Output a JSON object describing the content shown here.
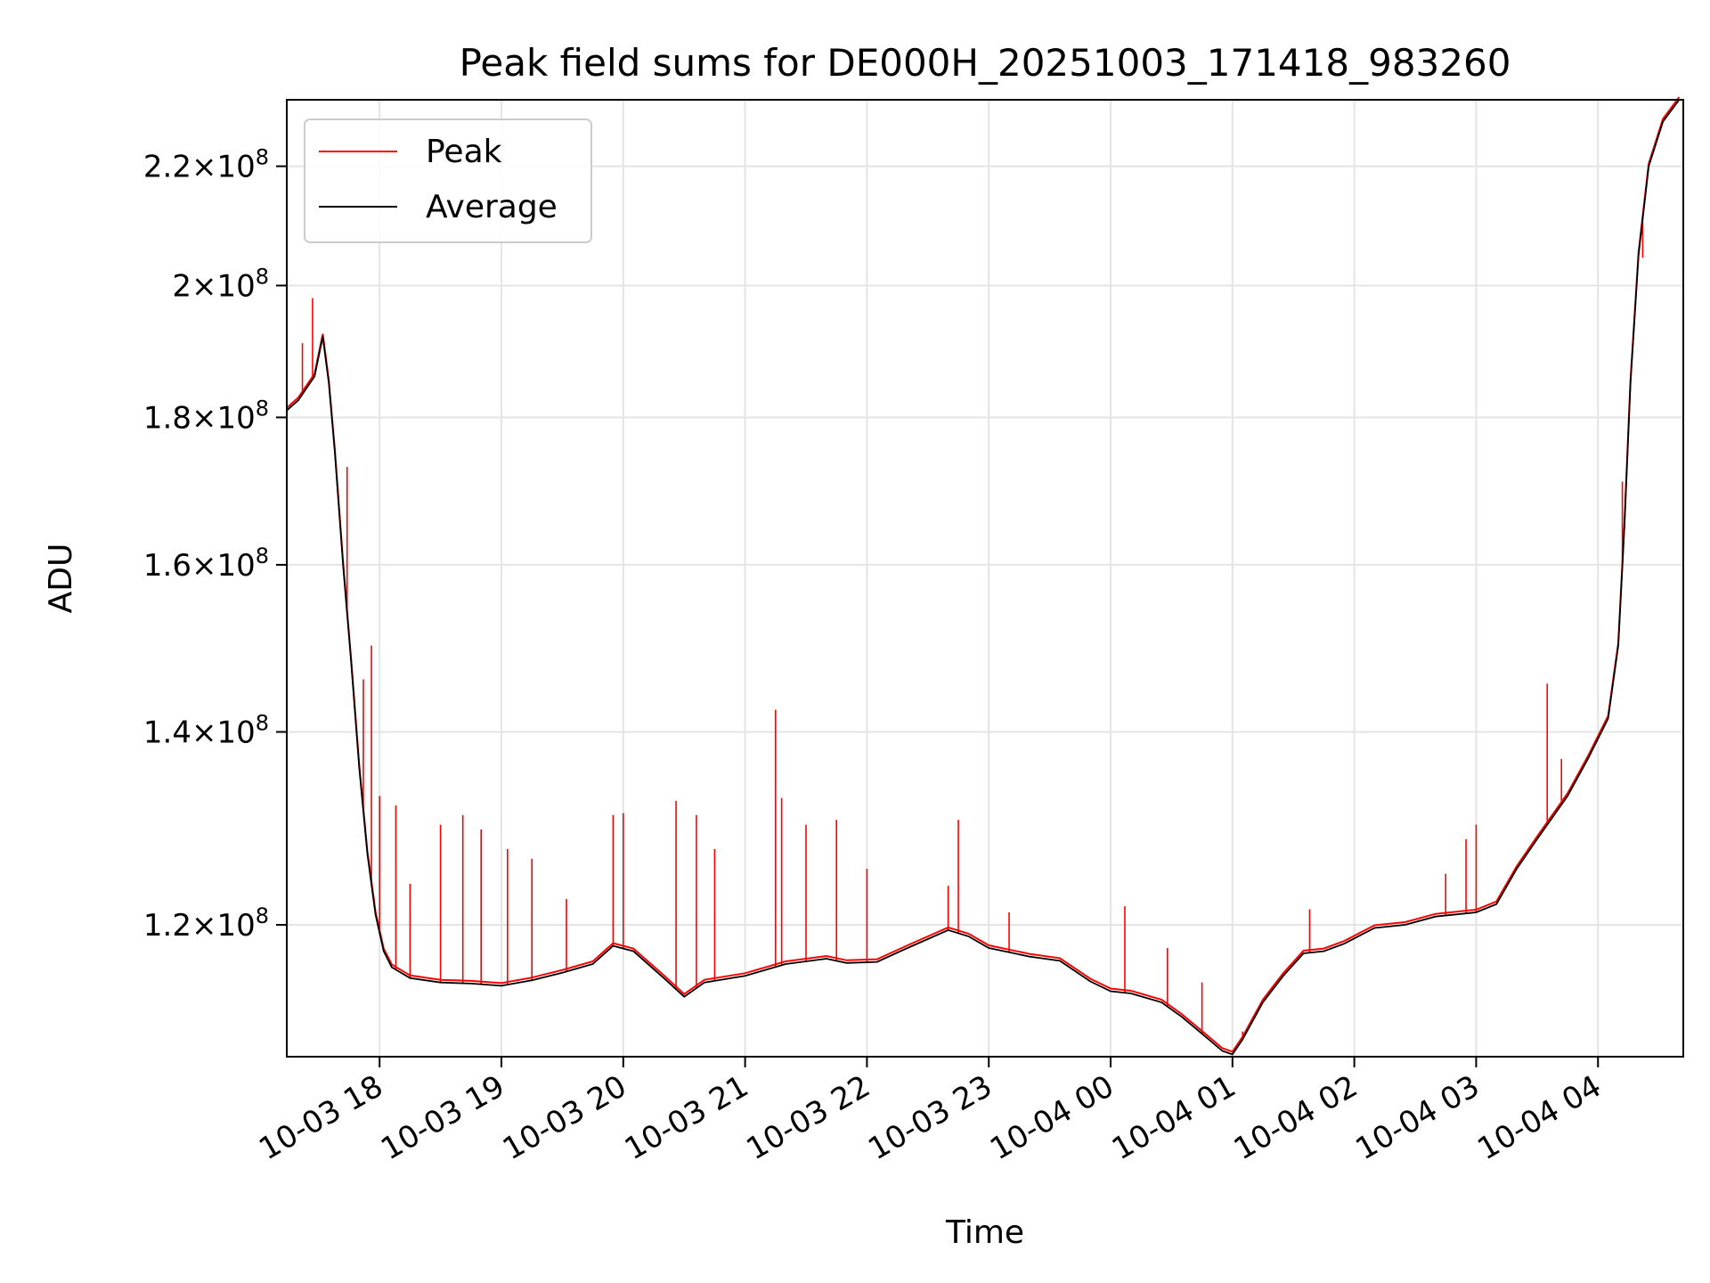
{
  "chart_data": {
    "type": "line",
    "title": "Peak field sums for DE000H_20251003_171418_983260",
    "xlabel": "Time",
    "ylabel": "ADU",
    "y_scale": "log",
    "ylim": [
      108000000,
      232000000
    ],
    "xlim": [
      "2025-10-03T17:14:18",
      "2025-10-04T04:42:00"
    ],
    "grid": true,
    "legend_position": "upper-left",
    "x_ticks": [
      {
        "time": "2025-10-03T18:00",
        "label": "10-03 18"
      },
      {
        "time": "2025-10-03T19:00",
        "label": "10-03 19"
      },
      {
        "time": "2025-10-03T20:00",
        "label": "10-03 20"
      },
      {
        "time": "2025-10-03T21:00",
        "label": "10-03 21"
      },
      {
        "time": "2025-10-03T22:00",
        "label": "10-03 22"
      },
      {
        "time": "2025-10-03T23:00",
        "label": "10-03 23"
      },
      {
        "time": "2025-10-04T00:00",
        "label": "10-04 00"
      },
      {
        "time": "2025-10-04T01:00",
        "label": "10-04 01"
      },
      {
        "time": "2025-10-04T02:00",
        "label": "10-04 02"
      },
      {
        "time": "2025-10-04T03:00",
        "label": "10-04 03"
      },
      {
        "time": "2025-10-04T04:00",
        "label": "10-04 04"
      }
    ],
    "y_ticks": [
      {
        "value": 120000000,
        "mantissa": "1.2",
        "base": "10",
        "exponent": "8"
      },
      {
        "value": 140000000,
        "mantissa": "1.4",
        "base": "10",
        "exponent": "8"
      },
      {
        "value": 160000000,
        "mantissa": "1.6",
        "base": "10",
        "exponent": "8"
      },
      {
        "value": 180000000,
        "mantissa": "1.8",
        "base": "10",
        "exponent": "8"
      },
      {
        "value": 200000000,
        "mantissa": "2",
        "base": "10",
        "exponent": "8"
      },
      {
        "value": 220000000,
        "mantissa": "2.2",
        "base": "10",
        "exponent": "8"
      }
    ],
    "series": [
      {
        "name": "Average",
        "color": "#000000",
        "points": [
          [
            "2025-10-03T17:14:18",
            181000000
          ],
          [
            "2025-10-03T17:20",
            182500000
          ],
          [
            "2025-10-03T17:28",
            186000000
          ],
          [
            "2025-10-03T17:32",
            192000000
          ],
          [
            "2025-10-03T17:35",
            185000000
          ],
          [
            "2025-10-03T17:38",
            175000000
          ],
          [
            "2025-10-03T17:42",
            160000000
          ],
          [
            "2025-10-03T17:46",
            148000000
          ],
          [
            "2025-10-03T17:50",
            136000000
          ],
          [
            "2025-10-03T17:54",
            127000000
          ],
          [
            "2025-10-03T17:58",
            121000000
          ],
          [
            "2025-10-03T18:02",
            117500000
          ],
          [
            "2025-10-03T18:06",
            116000000
          ],
          [
            "2025-10-03T18:15",
            115000000
          ],
          [
            "2025-10-03T18:30",
            114600000
          ],
          [
            "2025-10-03T18:45",
            114500000
          ],
          [
            "2025-10-03T19:00",
            114300000
          ],
          [
            "2025-10-03T19:15",
            114800000
          ],
          [
            "2025-10-03T19:30",
            115500000
          ],
          [
            "2025-10-03T19:45",
            116300000
          ],
          [
            "2025-10-03T19:55",
            118000000
          ],
          [
            "2025-10-03T20:05",
            117500000
          ],
          [
            "2025-10-03T20:20",
            115000000
          ],
          [
            "2025-10-03T20:30",
            113300000
          ],
          [
            "2025-10-03T20:40",
            114600000
          ],
          [
            "2025-10-03T21:00",
            115200000
          ],
          [
            "2025-10-03T21:20",
            116300000
          ],
          [
            "2025-10-03T21:40",
            116800000
          ],
          [
            "2025-10-03T21:50",
            116400000
          ],
          [
            "2025-10-03T22:05",
            116500000
          ],
          [
            "2025-10-03T22:20",
            117800000
          ],
          [
            "2025-10-03T22:40",
            119500000
          ],
          [
            "2025-10-03T22:50",
            118900000
          ],
          [
            "2025-10-03T23:00",
            117800000
          ],
          [
            "2025-10-03T23:10",
            117400000
          ],
          [
            "2025-10-03T23:20",
            117000000
          ],
          [
            "2025-10-03T23:35",
            116600000
          ],
          [
            "2025-10-03T23:50",
            114700000
          ],
          [
            "2025-10-04T00:00",
            113800000
          ],
          [
            "2025-10-04T00:10",
            113600000
          ],
          [
            "2025-10-04T00:25",
            112800000
          ],
          [
            "2025-10-04T00:35",
            111500000
          ],
          [
            "2025-10-04T00:45",
            110000000
          ],
          [
            "2025-10-04T00:55",
            108500000
          ],
          [
            "2025-10-04T01:00",
            108200000
          ],
          [
            "2025-10-04T01:05",
            109500000
          ],
          [
            "2025-10-04T01:15",
            112800000
          ],
          [
            "2025-10-04T01:25",
            115200000
          ],
          [
            "2025-10-04T01:35",
            117300000
          ],
          [
            "2025-10-04T01:45",
            117500000
          ],
          [
            "2025-10-04T01:55",
            118200000
          ],
          [
            "2025-10-04T02:10",
            119700000
          ],
          [
            "2025-10-04T02:25",
            120000000
          ],
          [
            "2025-10-04T02:40",
            120800000
          ],
          [
            "2025-10-04T03:00",
            121200000
          ],
          [
            "2025-10-04T03:10",
            122000000
          ],
          [
            "2025-10-04T03:20",
            125500000
          ],
          [
            "2025-10-04T03:30",
            128500000
          ],
          [
            "2025-10-04T03:45",
            133000000
          ],
          [
            "2025-10-04T03:55",
            137000000
          ],
          [
            "2025-10-04T04:05",
            141500000
          ],
          [
            "2025-10-04T04:10",
            150000000
          ],
          [
            "2025-10-04T04:13",
            165000000
          ],
          [
            "2025-10-04T04:16",
            185000000
          ],
          [
            "2025-10-04T04:20",
            205000000
          ],
          [
            "2025-10-04T04:25",
            220000000
          ],
          [
            "2025-10-04T04:32",
            228000000
          ],
          [
            "2025-10-04T04:40",
            232000000
          ]
        ]
      },
      {
        "name": "Peak",
        "color": "#ff0000",
        "spikes": [
          [
            "2025-10-03T17:22",
            191000000
          ],
          [
            "2025-10-03T17:27",
            198000000
          ],
          [
            "2025-10-03T17:44",
            173000000
          ],
          [
            "2025-10-03T17:52",
            146000000
          ],
          [
            "2025-10-03T17:56",
            150000000
          ],
          [
            "2025-10-03T18:00",
            133000000
          ],
          [
            "2025-10-03T18:08",
            132000000
          ],
          [
            "2025-10-03T18:15",
            124000000
          ],
          [
            "2025-10-03T18:30",
            130000000
          ],
          [
            "2025-10-03T18:41",
            131000000
          ],
          [
            "2025-10-03T18:50",
            129500000
          ],
          [
            "2025-10-03T19:03",
            127500000
          ],
          [
            "2025-10-03T19:15",
            126500000
          ],
          [
            "2025-10-03T19:32",
            122500000
          ],
          [
            "2025-10-03T19:55",
            131000000
          ],
          [
            "2025-10-03T20:00",
            131200000
          ],
          [
            "2025-10-03T20:26",
            132500000
          ],
          [
            "2025-10-03T20:36",
            131000000
          ],
          [
            "2025-10-03T20:45",
            127500000
          ],
          [
            "2025-10-03T21:15",
            142500000
          ],
          [
            "2025-10-03T21:18",
            132800000
          ],
          [
            "2025-10-03T21:30",
            130000000
          ],
          [
            "2025-10-03T21:45",
            130500000
          ],
          [
            "2025-10-03T22:00",
            125500000
          ],
          [
            "2025-10-03T22:40",
            123800000
          ],
          [
            "2025-10-03T22:45",
            130500000
          ],
          [
            "2025-10-03T23:10",
            121200000
          ],
          [
            "2025-10-04T00:07",
            121800000
          ],
          [
            "2025-10-04T00:28",
            117800000
          ],
          [
            "2025-10-04T00:45",
            114600000
          ],
          [
            "2025-10-04T01:05",
            110200000
          ],
          [
            "2025-10-04T01:38",
            121500000
          ],
          [
            "2025-10-04T02:45",
            125000000
          ],
          [
            "2025-10-04T02:55",
            128500000
          ],
          [
            "2025-10-04T03:00",
            130000000
          ],
          [
            "2025-10-04T03:35",
            145500000
          ],
          [
            "2025-10-04T03:42",
            137000000
          ],
          [
            "2025-10-04T04:12",
            171000000
          ],
          [
            "2025-10-04T04:22",
            204500000
          ],
          [
            "2025-10-04T04:28",
            224000000
          ]
        ]
      }
    ]
  }
}
